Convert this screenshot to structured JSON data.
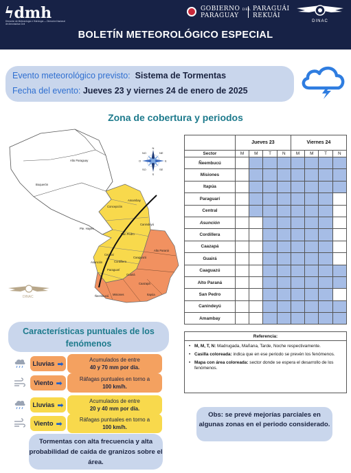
{
  "header": {
    "logo_text": "dmh",
    "logo_sub": "Dirección de Meteorología e Hidrología — Dirección Nacional de Aeronáutica Civil",
    "gov_line1a": "GOBIERNO",
    "gov_line1b": "DEL",
    "gov_line2": "PARAGUAY",
    "gov_line3": "PARAGUÁI",
    "gov_line4": "REKUÁI",
    "dinac": "DINAC",
    "title": "BOLETÍN METEOROLÓGICO ESPECIAL"
  },
  "event": {
    "label_event": "Evento meteorológico previsto:",
    "value_event": "Sistema de Tormentas",
    "label_date": "Fecha del evento:",
    "value_date": "Jueves 23 y viernes 24 de enero de 2025"
  },
  "zona_title": "Zona de cobertura y periodos",
  "map": {
    "labels": [
      "Alto Paraguay",
      "Boquerón",
      "Pte. Hayes",
      "Concepción",
      "Amambay",
      "San Pedro",
      "Canindeyú",
      "Central",
      "Asunción",
      "Cordillera",
      "Caaguazú",
      "Alto Paraná",
      "Guairá",
      "Caazapá",
      "Paraguarí",
      "Misiones",
      "Itapúa",
      "Ñeembucú"
    ],
    "compass": [
      "N",
      "S",
      "E",
      "O",
      "NE",
      "NO",
      "SE",
      "SO"
    ],
    "watermark": "DINAC"
  },
  "table": {
    "sector_header": "Sector",
    "days": [
      "Jueves 23",
      "Viernes 24"
    ],
    "periods": [
      "M",
      "M",
      "T",
      "N",
      "M",
      "M",
      "T",
      "N"
    ],
    "rows": [
      {
        "name": "Ñeembucú",
        "italic": false,
        "cells": [
          0,
          1,
          1,
          1,
          1,
          1,
          1,
          1
        ]
      },
      {
        "name": "Misiones",
        "italic": false,
        "cells": [
          0,
          1,
          1,
          1,
          1,
          1,
          1,
          1
        ]
      },
      {
        "name": "Itapúa",
        "italic": false,
        "cells": [
          0,
          1,
          1,
          1,
          1,
          1,
          1,
          1
        ]
      },
      {
        "name": "Paraguarí",
        "italic": false,
        "cells": [
          0,
          1,
          1,
          1,
          1,
          1,
          1,
          0
        ]
      },
      {
        "name": "Central",
        "italic": false,
        "cells": [
          0,
          1,
          1,
          1,
          1,
          1,
          1,
          0
        ]
      },
      {
        "name": "Asunción",
        "italic": true,
        "cells": [
          0,
          0,
          1,
          1,
          1,
          1,
          1,
          0
        ]
      },
      {
        "name": "Cordillera",
        "italic": false,
        "cells": [
          0,
          0,
          1,
          1,
          1,
          1,
          1,
          0
        ]
      },
      {
        "name": "Caazapá",
        "italic": false,
        "cells": [
          0,
          0,
          1,
          1,
          1,
          1,
          1,
          0
        ]
      },
      {
        "name": "Guairá",
        "italic": false,
        "cells": [
          0,
          0,
          1,
          1,
          1,
          1,
          1,
          0
        ]
      },
      {
        "name": "Caaguazú",
        "italic": false,
        "cells": [
          0,
          0,
          1,
          1,
          1,
          1,
          1,
          1
        ]
      },
      {
        "name": "Alto Paraná",
        "italic": false,
        "cells": [
          0,
          0,
          1,
          1,
          1,
          1,
          1,
          1
        ]
      },
      {
        "name": "San Pedro",
        "italic": false,
        "cells": [
          0,
          0,
          1,
          1,
          1,
          1,
          1,
          0
        ]
      },
      {
        "name": "Canindeyú",
        "italic": false,
        "cells": [
          0,
          0,
          1,
          1,
          1,
          1,
          1,
          1
        ]
      },
      {
        "name": "Amambay",
        "italic": false,
        "cells": [
          0,
          0,
          1,
          1,
          1,
          1,
          1,
          1
        ]
      }
    ],
    "cell_color": "#a6bde6"
  },
  "reference": {
    "title": "Referencia:",
    "items": [
      {
        "bold": "M, M, T, N:",
        "text": " Madrugada, Mañana, Tarde, Noche respectivamente."
      },
      {
        "bold": "Casilla coloreada:",
        "text": " indica que en ese periodo se prevén los fenómenos."
      },
      {
        "bold": "Mapa con área coloreada:",
        "text": " sector donde se espera el desarrollo de los fenómenos."
      }
    ]
  },
  "caracteristicas": {
    "title": "Características puntuales de los fenómenos",
    "items": [
      {
        "icon": "rain-cloud-icon",
        "name": "Lluvias",
        "color": "orange",
        "line1": "Acumulados de entre",
        "line2": "40 y 70 mm por día."
      },
      {
        "icon": "wind-icon",
        "name": "Viento",
        "color": "orange",
        "line1": "Ráfagas puntuales en torno a",
        "line2": "100 km/h."
      },
      {
        "icon": "rain-cloud-icon",
        "name": "Lluvias",
        "color": "yellow",
        "line1": "Acumulados de entre",
        "line2": "20 y 40 mm por día."
      },
      {
        "icon": "wind-icon",
        "name": "Viento",
        "color": "yellow",
        "line1": "Ráfagas puntuales en torno a",
        "line2": "100 km/h."
      }
    ]
  },
  "storm_note": "Tormentas con alta frecuencia y alta probabilidad de caída de granizos sobre el área.",
  "obs_note": "Obs: se prevé mejorías parciales en algunas zonas en el periodo considerado.",
  "colors": {
    "navy": "#172246",
    "orange": "#f4a160",
    "yellow": "#f8d94c",
    "panel": "#c9d6ec",
    "teal": "#1d7a8c"
  }
}
